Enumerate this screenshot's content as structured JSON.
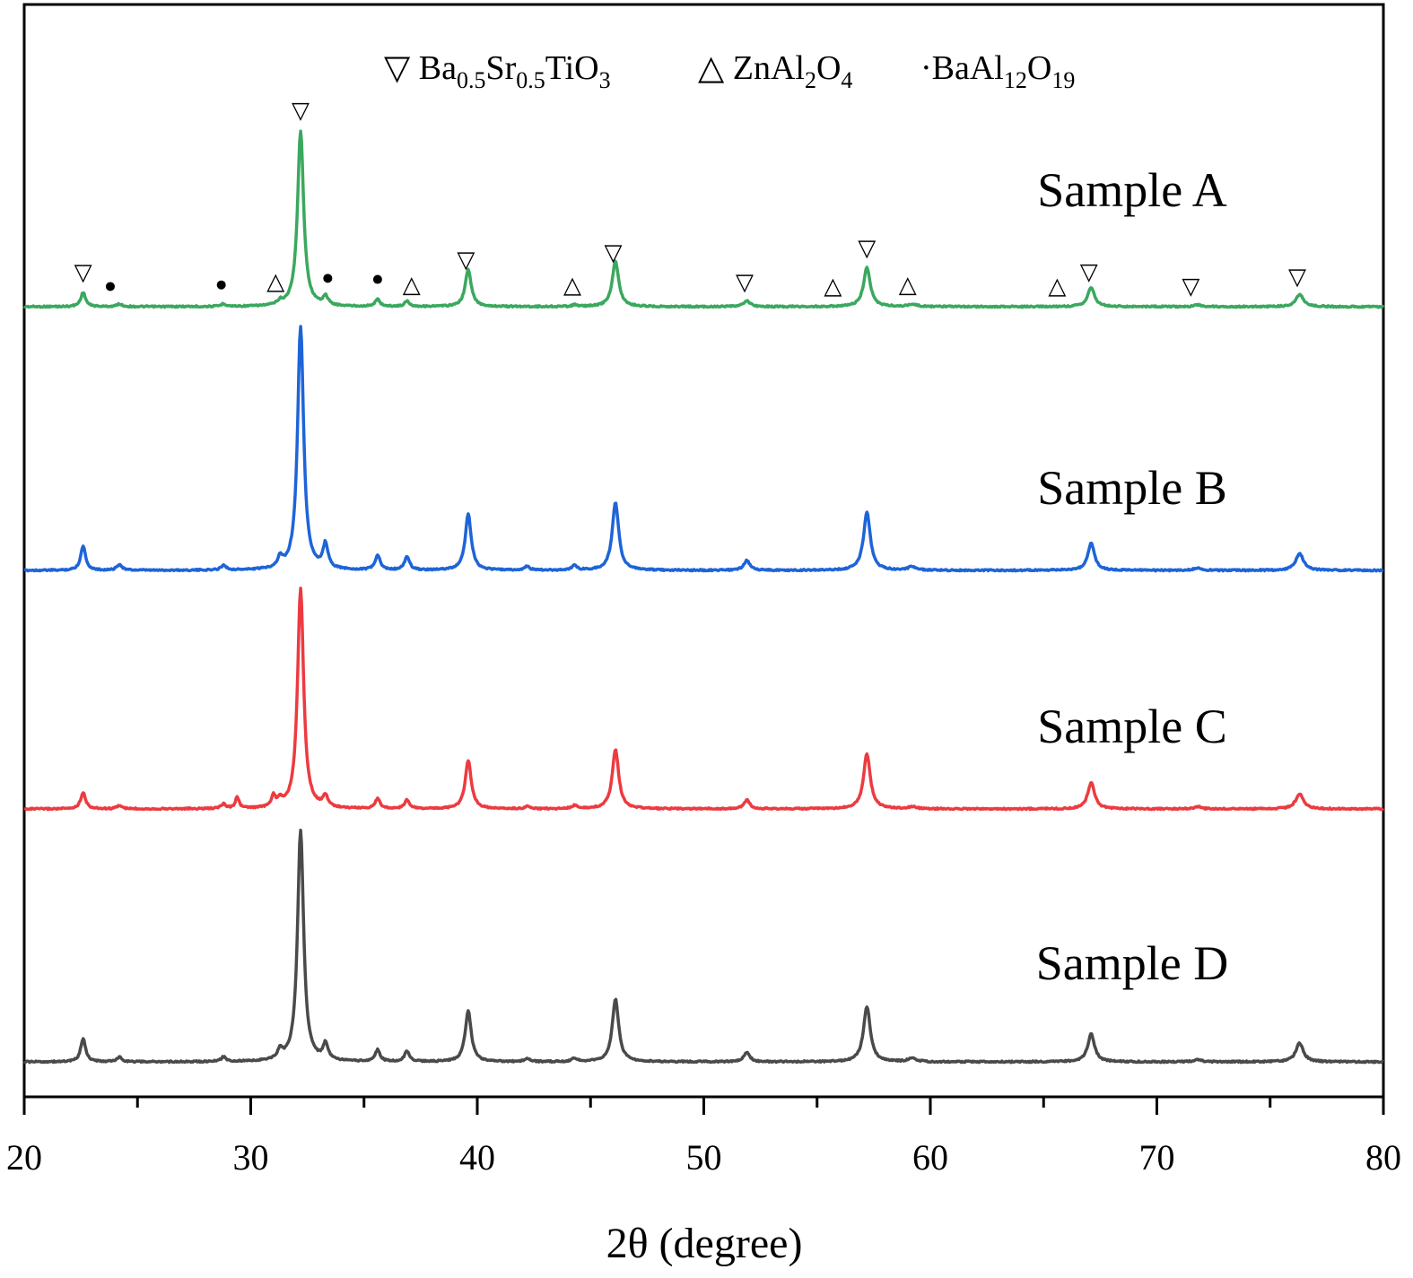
{
  "chart_data": {
    "type": "line",
    "xlabel": "2θ (degree)",
    "ylabel": "",
    "xlim": [
      20,
      80
    ],
    "xticks": [
      "20",
      "30",
      "40",
      "50",
      "60",
      "70",
      "80"
    ],
    "grid": false,
    "legend": {
      "placement": "top-center",
      "entries": [
        {
          "symbol": "▽",
          "parts": [
            [
              "Ba",
              ""
            ],
            [
              "0.5",
              "sub"
            ],
            [
              "Sr",
              ""
            ],
            [
              "0.5",
              "sub"
            ],
            [
              "TiO",
              ""
            ],
            [
              "3",
              "sub"
            ]
          ]
        },
        {
          "symbol": "△",
          "parts": [
            [
              "ZnAl",
              ""
            ],
            [
              "2",
              "sub"
            ],
            [
              "O",
              ""
            ],
            [
              "4",
              "sub"
            ]
          ]
        },
        {
          "symbol": "·",
          "parts": [
            [
              "BaAl",
              ""
            ],
            [
              "12",
              "sub"
            ],
            [
              "O",
              ""
            ],
            [
              "19",
              "sub"
            ]
          ]
        }
      ]
    },
    "peaks": [
      {
        "x": 22.6,
        "w": 0.13,
        "h": {
          "A": 0.08,
          "B": 0.1,
          "C": 0.075,
          "D": 0.1
        }
      },
      {
        "x": 24.2,
        "w": 0.13,
        "h": {
          "A": 0.015,
          "B": 0.025,
          "C": 0.015,
          "D": 0.02
        }
      },
      {
        "x": 28.8,
        "w": 0.13,
        "h": {
          "A": 0.015,
          "B": 0.02,
          "C": 0.02,
          "D": 0.02
        }
      },
      {
        "x": 29.4,
        "w": 0.1,
        "h": {
          "A": 0.0,
          "B": 0.0,
          "C": 0.05,
          "D": 0.0
        }
      },
      {
        "x": 31.0,
        "w": 0.1,
        "h": {
          "A": 0.0,
          "B": 0.0,
          "C": 0.05,
          "D": 0.0
        }
      },
      {
        "x": 31.3,
        "w": 0.13,
        "h": {
          "A": 0.02,
          "B": 0.04,
          "C": 0.03,
          "D": 0.04
        }
      },
      {
        "x": 32.2,
        "w": 0.16,
        "h": {
          "A": 1.0,
          "B": 1.0,
          "C": 1.0,
          "D": 1.0
        }
      },
      {
        "x": 33.3,
        "w": 0.13,
        "h": {
          "A": 0.05,
          "B": 0.1,
          "C": 0.05,
          "D": 0.07
        }
      },
      {
        "x": 35.6,
        "w": 0.13,
        "h": {
          "A": 0.04,
          "B": 0.06,
          "C": 0.045,
          "D": 0.05
        }
      },
      {
        "x": 36.9,
        "w": 0.13,
        "h": {
          "A": 0.03,
          "B": 0.055,
          "C": 0.04,
          "D": 0.045
        }
      },
      {
        "x": 39.6,
        "w": 0.16,
        "h": {
          "A": 0.21,
          "B": 0.23,
          "C": 0.22,
          "D": 0.22
        }
      },
      {
        "x": 42.2,
        "w": 0.13,
        "h": {
          "A": 0.0,
          "B": 0.015,
          "C": 0.01,
          "D": 0.015
        }
      },
      {
        "x": 44.3,
        "w": 0.13,
        "h": {
          "A": 0.01,
          "B": 0.02,
          "C": 0.015,
          "D": 0.015
        }
      },
      {
        "x": 46.1,
        "w": 0.17,
        "h": {
          "A": 0.26,
          "B": 0.28,
          "C": 0.27,
          "D": 0.27
        }
      },
      {
        "x": 51.9,
        "w": 0.16,
        "h": {
          "A": 0.035,
          "B": 0.04,
          "C": 0.04,
          "D": 0.04
        }
      },
      {
        "x": 57.2,
        "w": 0.18,
        "h": {
          "A": 0.22,
          "B": 0.24,
          "C": 0.25,
          "D": 0.24
        }
      },
      {
        "x": 59.2,
        "w": 0.2,
        "h": {
          "A": 0.015,
          "B": 0.015,
          "C": 0.01,
          "D": 0.015
        }
      },
      {
        "x": 67.1,
        "w": 0.18,
        "h": {
          "A": 0.11,
          "B": 0.11,
          "C": 0.12,
          "D": 0.12
        }
      },
      {
        "x": 71.8,
        "w": 0.2,
        "h": {
          "A": 0.01,
          "B": 0.01,
          "C": 0.01,
          "D": 0.01
        }
      },
      {
        "x": 76.3,
        "w": 0.2,
        "h": {
          "A": 0.07,
          "B": 0.07,
          "C": 0.07,
          "D": 0.08
        }
      }
    ],
    "series": [
      {
        "name": "Sample A",
        "key": "A",
        "color": "#3aa85e"
      },
      {
        "name": "Sample B",
        "key": "B",
        "color": "#1e64d8"
      },
      {
        "name": "Sample C",
        "key": "C",
        "color": "#ec3b40"
      },
      {
        "name": "Sample D",
        "key": "D",
        "color": "#4a4a4a"
      }
    ],
    "phase_markers": [
      {
        "x": 22.6,
        "symbol": "▽"
      },
      {
        "x": 23.8,
        "symbol": "•"
      },
      {
        "x": 28.7,
        "symbol": "•"
      },
      {
        "x": 31.1,
        "symbol": "△"
      },
      {
        "x": 32.2,
        "symbol": "▽"
      },
      {
        "x": 33.4,
        "symbol": "•"
      },
      {
        "x": 35.6,
        "symbol": "•"
      },
      {
        "x": 37.1,
        "symbol": "△"
      },
      {
        "x": 39.5,
        "symbol": "▽"
      },
      {
        "x": 44.2,
        "symbol": "△"
      },
      {
        "x": 46.0,
        "symbol": "▽"
      },
      {
        "x": 51.8,
        "symbol": "▽"
      },
      {
        "x": 55.7,
        "symbol": "△"
      },
      {
        "x": 57.2,
        "symbol": "▽"
      },
      {
        "x": 59.0,
        "symbol": "△"
      },
      {
        "x": 65.6,
        "symbol": "△"
      },
      {
        "x": 67.0,
        "symbol": "▽"
      },
      {
        "x": 71.5,
        "symbol": "▽"
      },
      {
        "x": 76.2,
        "symbol": "▽"
      }
    ]
  }
}
